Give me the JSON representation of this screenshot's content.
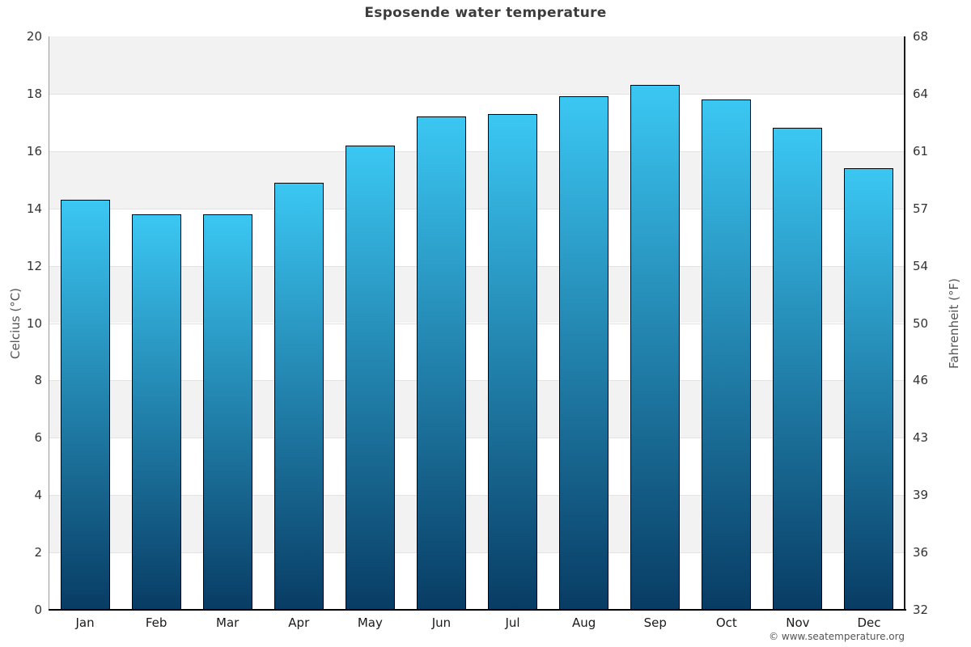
{
  "credit": "© www.seatemperature.org",
  "chart_data": {
    "type": "bar",
    "title": "Esposende water temperature",
    "categories": [
      "Jan",
      "Feb",
      "Mar",
      "Apr",
      "May",
      "Jun",
      "Jul",
      "Aug",
      "Sep",
      "Oct",
      "Nov",
      "Dec"
    ],
    "values": [
      14.3,
      13.8,
      13.8,
      14.9,
      16.2,
      17.2,
      17.3,
      17.9,
      18.3,
      17.8,
      16.8,
      15.4
    ],
    "xlabel": "",
    "ylabel_left": "Celcius (°C)",
    "ylabel_right": "Fahrenheit (°F)",
    "ylim": [
      0,
      20
    ],
    "yticks_left": [
      0,
      2,
      4,
      6,
      8,
      10,
      12,
      14,
      16,
      18,
      20
    ],
    "yticks_right": [
      "32",
      "36",
      "39",
      "43",
      "46",
      "50",
      "54",
      "57",
      "61",
      "64",
      "68"
    ],
    "grid": "alternate-horizontal-bands",
    "legend": "none",
    "colors": {
      "bar_gradient_top": "#3BC7F3",
      "bar_gradient_bottom": "#083C64",
      "bar_border": "#000000",
      "band_gray": "#f2f2f2",
      "gridline": "#e2e2e2",
      "axis_line_left": "#9a9a9a",
      "axis_line_right": "#1a1a1a",
      "axis_line_bottom": "#000000",
      "title_text": "#3c3c3c",
      "tick_text": "#333333",
      "axis_title_text": "#555555",
      "credit_text": "#555555"
    }
  }
}
